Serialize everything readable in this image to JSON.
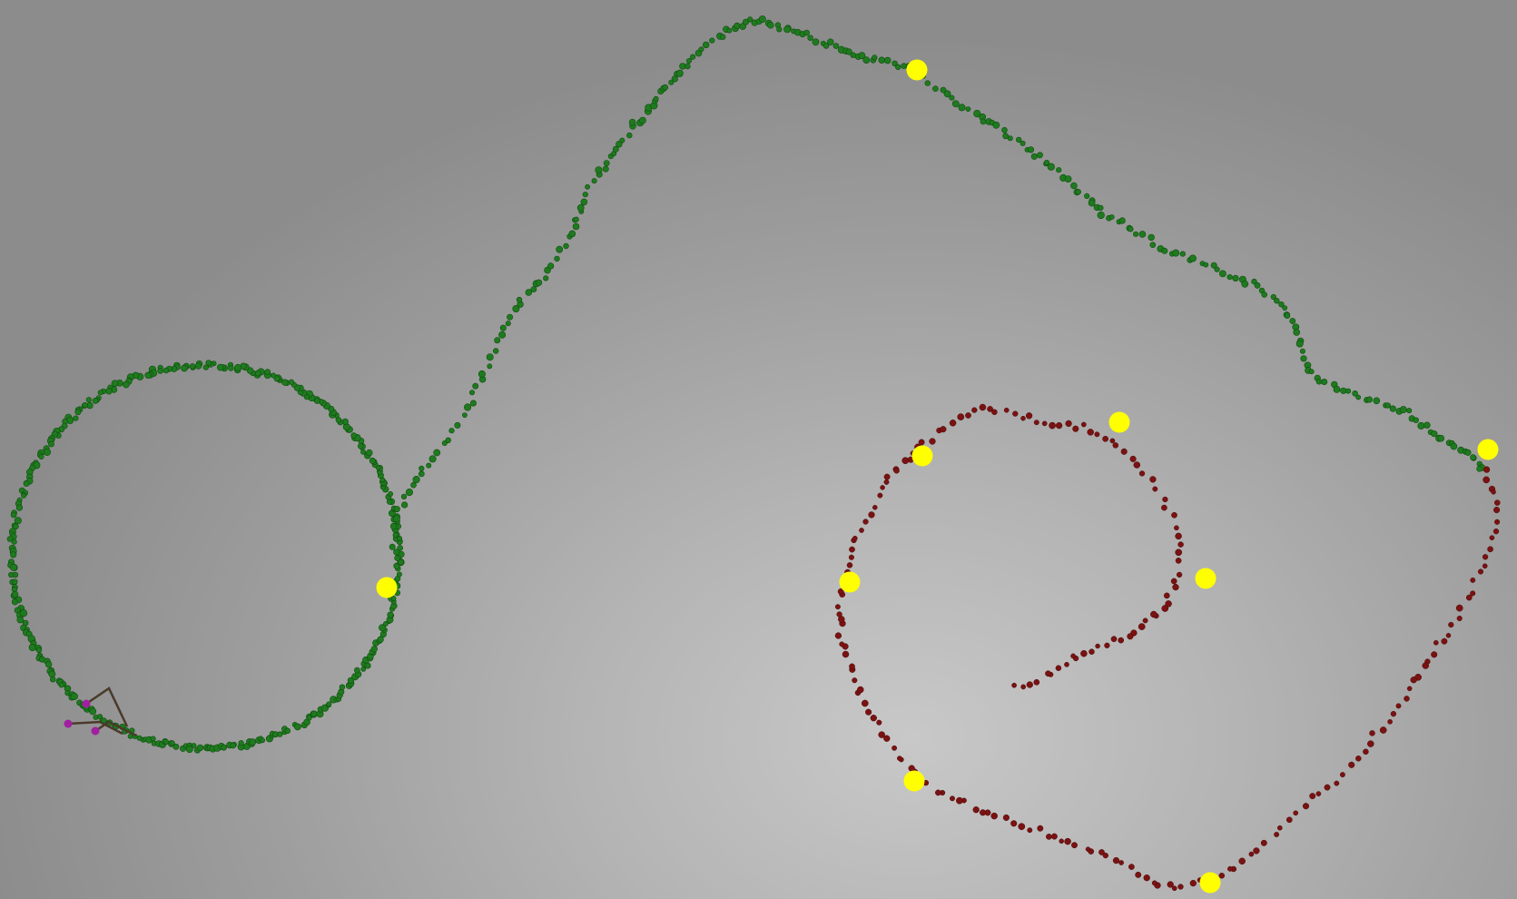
{
  "scene": {
    "colors": {
      "background_center": "#c8c8c8",
      "background_edge": "#8c8c8c",
      "path_green": "#1f7a1f",
      "path_red": "#7a1212",
      "landmark": "#ffff00",
      "pose_marker": "#a020a0",
      "pose_line": "#4a3a2a"
    },
    "paths": [
      {
        "name": "green-trajectory",
        "color_key": "path_green",
        "shape": "loop-then-loop"
      },
      {
        "name": "red-trajectory",
        "color_key": "path_red",
        "shape": "spiral-loop"
      }
    ],
    "landmark_count": 9,
    "pose_marker_count": 3
  }
}
